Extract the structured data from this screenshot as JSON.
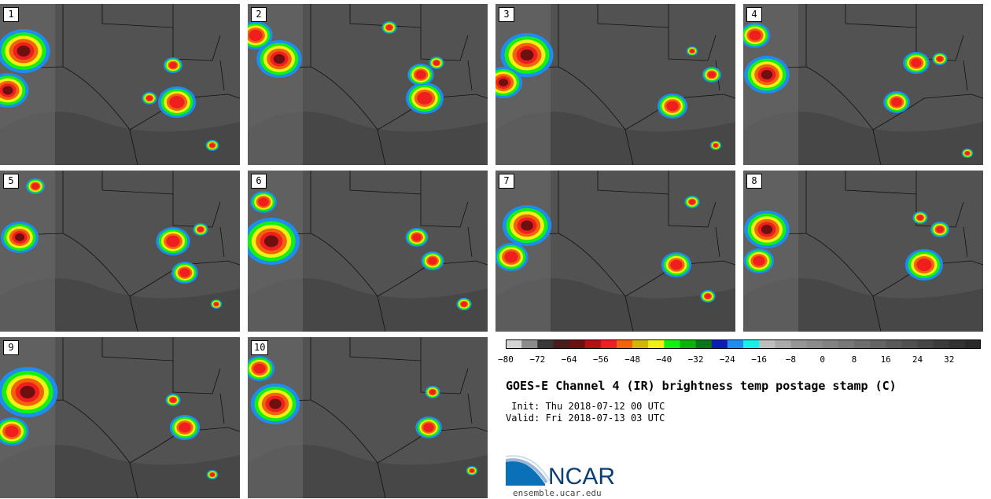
{
  "panels": [
    {
      "label": "1"
    },
    {
      "label": "2"
    },
    {
      "label": "3"
    },
    {
      "label": "4"
    },
    {
      "label": "5"
    },
    {
      "label": "6"
    },
    {
      "label": "7"
    },
    {
      "label": "8"
    },
    {
      "label": "9"
    },
    {
      "label": "10"
    }
  ],
  "colorbar": {
    "colors": [
      "#d4d4d4",
      "#8c8c8c",
      "#383838",
      "#4a1c1c",
      "#6e1010",
      "#b41212",
      "#f01e1e",
      "#f0640a",
      "#d2b40a",
      "#f0f014",
      "#14f014",
      "#0ab40a",
      "#0a7814",
      "#0a1eb4",
      "#1e8cf0",
      "#14f0f0",
      "#bebebe",
      "#aaaaaa",
      "#969696",
      "#8c8c8c",
      "#828282",
      "#787878",
      "#6e6e6e",
      "#646464",
      "#5a5a5a",
      "#505050",
      "#464646",
      "#3c3c3c",
      "#323232",
      "#2a2a2a"
    ],
    "ticks": [
      "−80",
      "−72",
      "−64",
      "−56",
      "−48",
      "−40",
      "−32",
      "−24",
      "−16",
      "−8",
      "0",
      "8",
      "16",
      "24",
      "32"
    ]
  },
  "title": "GOES-E Channel 4 (IR) brightness temp postage stamp (C)",
  "init_line": " Init: Thu 2018-07-12 00 UTC",
  "valid_line": "Valid: Fri 2018-07-13 03 UTC",
  "logo": {
    "name": "NCAR",
    "url_text": "ensemble.ucar.edu"
  }
}
